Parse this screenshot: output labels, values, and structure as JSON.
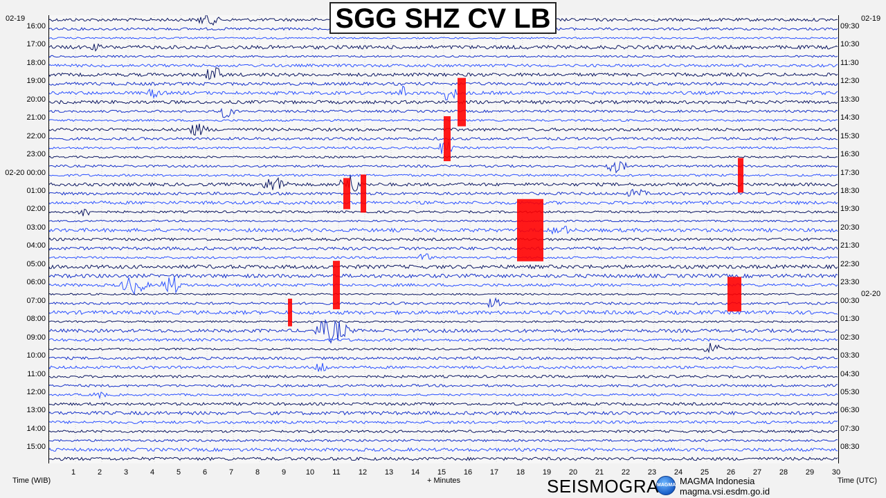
{
  "title": "SGG SHZ CV LB",
  "left_axis": {
    "date_top": "02-19",
    "labels": [
      "16:00",
      "17:00",
      "18:00",
      "19:00",
      "20:00",
      "21:00",
      "22:00",
      "23:00",
      "02-20 00:00",
      "01:00",
      "02:00",
      "03:00",
      "04:00",
      "05:00",
      "06:00",
      "07:00",
      "08:00",
      "09:00",
      "10:00",
      "11:00",
      "12:00",
      "13:00",
      "14:00",
      "15:00"
    ],
    "title": "Time (WIB)"
  },
  "right_axis": {
    "date_top": "02-19",
    "date_change": "02-20",
    "labels": [
      "09:30",
      "10:30",
      "11:30",
      "12:30",
      "13:30",
      "14:30",
      "15:30",
      "16:30",
      "17:30",
      "18:30",
      "19:30",
      "20:30",
      "21:30",
      "22:30",
      "23:30",
      "00:30",
      "01:30",
      "02:30",
      "03:30",
      "04:30",
      "05:30",
      "06:30",
      "07:30",
      "08:30"
    ],
    "title": "Time (UTC)"
  },
  "x_axis": {
    "ticks": [
      "1",
      "2",
      "3",
      "4",
      "5",
      "6",
      "7",
      "8",
      "9",
      "10",
      "11",
      "12",
      "13",
      "14",
      "15",
      "16",
      "17",
      "18",
      "19",
      "20",
      "21",
      "22",
      "23",
      "24",
      "25",
      "26",
      "27",
      "28",
      "29",
      "30"
    ],
    "title": "+ Minutes"
  },
  "footer": {
    "brand": "SEISMOGRAM",
    "logo_text": "MAGMA",
    "org": "MAGMA Indonesia",
    "url": "magma.vsi.esdm.go.id"
  },
  "colors": {
    "trace_dark": "#0a1560",
    "trace_blue": "#1530c8",
    "trace_light": "#2a50ff",
    "clipped": "#ff0000",
    "background": "#f7f7f7"
  }
}
